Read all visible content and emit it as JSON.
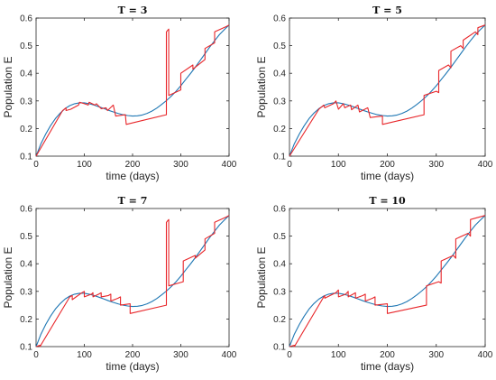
{
  "chart_data": [
    {
      "type": "line",
      "title": "T = 3",
      "xlabel": "time (days)",
      "ylabel": "Population E",
      "xlim": [
        0,
        400
      ],
      "ylim": [
        0.1,
        0.6
      ],
      "xticks": [
        "0",
        "100",
        "200",
        "300",
        "400"
      ],
      "yticks": [
        "0.1",
        "0.2",
        "0.3",
        "0.4",
        "0.5",
        "0.6"
      ],
      "grid": false,
      "colors": {
        "blue": "#1f77b4",
        "red": "#e8262a"
      },
      "series": [
        {
          "x": [
            0,
            10,
            20,
            30,
            40,
            50,
            60,
            70,
            80,
            90,
            100,
            110,
            120,
            130,
            140,
            150,
            160,
            170,
            180,
            190,
            200,
            210,
            220,
            230,
            240,
            250,
            260,
            270,
            280,
            290,
            300,
            310,
            320,
            330,
            340,
            350,
            360,
            370,
            380,
            390,
            400
          ],
          "y": [
            0.1,
            0.145,
            0.18,
            0.21,
            0.236,
            0.256,
            0.272,
            0.283,
            0.29,
            0.293,
            0.293,
            0.29,
            0.285,
            0.279,
            0.273,
            0.266,
            0.26,
            0.255,
            0.25,
            0.247,
            0.245,
            0.246,
            0.249,
            0.255,
            0.263,
            0.274,
            0.287,
            0.301,
            0.317,
            0.335,
            0.355,
            0.377,
            0.399,
            0.422,
            0.446,
            0.471,
            0.495,
            0.518,
            0.54,
            0.558,
            0.575
          ]
        },
        {
          "x": [
            0,
            55,
            62,
            62,
            72,
            88,
            90,
            100,
            108,
            110,
            122,
            125,
            135,
            145,
            148,
            160,
            165,
            185,
            187,
            270,
            270,
            275,
            275,
            300,
            300,
            325,
            325,
            350,
            350,
            370,
            370,
            395,
            400
          ],
          "y": [
            0.1,
            0.265,
            0.275,
            0.265,
            0.27,
            0.285,
            0.295,
            0.29,
            0.285,
            0.295,
            0.285,
            0.29,
            0.272,
            0.275,
            0.265,
            0.285,
            0.245,
            0.25,
            0.215,
            0.25,
            0.55,
            0.56,
            0.32,
            0.34,
            0.4,
            0.43,
            0.415,
            0.45,
            0.49,
            0.51,
            0.55,
            0.57,
            0.575
          ]
        }
      ]
    },
    {
      "type": "line",
      "title": "T = 5",
      "xlabel": "time (days)",
      "ylabel": "Population E",
      "xlim": [
        0,
        400
      ],
      "ylim": [
        0.1,
        0.6
      ],
      "xticks": [
        "0",
        "100",
        "200",
        "300",
        "400"
      ],
      "yticks": [
        "0.1",
        "0.2",
        "0.3",
        "0.4",
        "0.5",
        "0.6"
      ],
      "grid": false,
      "colors": {
        "blue": "#1f77b4",
        "red": "#e8262a"
      },
      "series": [
        {
          "x": [
            0,
            10,
            20,
            30,
            40,
            50,
            60,
            70,
            80,
            90,
            100,
            110,
            120,
            130,
            140,
            150,
            160,
            170,
            180,
            190,
            200,
            210,
            220,
            230,
            240,
            250,
            260,
            270,
            280,
            290,
            300,
            310,
            320,
            330,
            340,
            350,
            360,
            370,
            380,
            390,
            400
          ],
          "y": [
            0.1,
            0.145,
            0.18,
            0.21,
            0.236,
            0.256,
            0.272,
            0.283,
            0.29,
            0.293,
            0.293,
            0.29,
            0.285,
            0.279,
            0.273,
            0.266,
            0.26,
            0.255,
            0.25,
            0.247,
            0.245,
            0.246,
            0.249,
            0.255,
            0.263,
            0.274,
            0.287,
            0.301,
            0.317,
            0.335,
            0.355,
            0.377,
            0.399,
            0.422,
            0.446,
            0.471,
            0.495,
            0.518,
            0.54,
            0.558,
            0.575
          ]
        },
        {
          "x": [
            0,
            60,
            70,
            72,
            90,
            95,
            100,
            110,
            113,
            125,
            127,
            140,
            143,
            160,
            165,
            190,
            190,
            275,
            275,
            300,
            305,
            305,
            325,
            330,
            330,
            350,
            355,
            355,
            380,
            385,
            385,
            400
          ],
          "y": [
            0.1,
            0.27,
            0.285,
            0.275,
            0.29,
            0.3,
            0.27,
            0.29,
            0.275,
            0.285,
            0.268,
            0.285,
            0.26,
            0.275,
            0.24,
            0.245,
            0.215,
            0.25,
            0.32,
            0.335,
            0.33,
            0.41,
            0.43,
            0.42,
            0.48,
            0.5,
            0.49,
            0.52,
            0.55,
            0.54,
            0.565,
            0.575
          ]
        }
      ]
    },
    {
      "type": "line",
      "title": "T = 7",
      "xlabel": "time (days)",
      "ylabel": "Population E",
      "xlim": [
        0,
        400
      ],
      "ylim": [
        0.1,
        0.6
      ],
      "xticks": [
        "0",
        "100",
        "200",
        "300",
        "400"
      ],
      "yticks": [
        "0.1",
        "0.2",
        "0.3",
        "0.4",
        "0.5",
        "0.6"
      ],
      "grid": false,
      "colors": {
        "blue": "#1f77b4",
        "red": "#e8262a"
      },
      "series": [
        {
          "x": [
            0,
            10,
            20,
            30,
            40,
            50,
            60,
            70,
            80,
            90,
            100,
            110,
            120,
            130,
            140,
            150,
            160,
            170,
            180,
            190,
            200,
            210,
            220,
            230,
            240,
            250,
            260,
            270,
            280,
            290,
            300,
            310,
            320,
            330,
            340,
            350,
            360,
            370,
            380,
            390,
            400
          ],
          "y": [
            0.1,
            0.145,
            0.18,
            0.21,
            0.236,
            0.256,
            0.272,
            0.283,
            0.29,
            0.293,
            0.293,
            0.29,
            0.285,
            0.279,
            0.273,
            0.266,
            0.26,
            0.255,
            0.25,
            0.247,
            0.245,
            0.246,
            0.249,
            0.255,
            0.263,
            0.274,
            0.287,
            0.301,
            0.317,
            0.335,
            0.355,
            0.377,
            0.399,
            0.422,
            0.446,
            0.471,
            0.495,
            0.518,
            0.54,
            0.558,
            0.575
          ]
        },
        {
          "x": [
            0,
            8,
            8,
            70,
            75,
            75,
            95,
            100,
            100,
            115,
            118,
            118,
            130,
            135,
            135,
            150,
            155,
            155,
            170,
            175,
            175,
            195,
            195,
            270,
            270,
            275,
            275,
            305,
            305,
            330,
            330,
            350,
            350,
            370,
            370,
            395,
            400
          ],
          "y": [
            0.1,
            0.105,
            0.1,
            0.28,
            0.285,
            0.27,
            0.295,
            0.3,
            0.28,
            0.29,
            0.295,
            0.28,
            0.29,
            0.295,
            0.28,
            0.285,
            0.29,
            0.265,
            0.275,
            0.28,
            0.25,
            0.255,
            0.22,
            0.25,
            0.55,
            0.56,
            0.32,
            0.335,
            0.41,
            0.43,
            0.42,
            0.45,
            0.49,
            0.51,
            0.55,
            0.57,
            0.575
          ]
        }
      ]
    },
    {
      "type": "line",
      "title": "T = 10",
      "xlabel": "time (days)",
      "ylabel": "Population E",
      "xlim": [
        0,
        400
      ],
      "ylim": [
        0.1,
        0.6
      ],
      "xticks": [
        "0",
        "100",
        "200",
        "300",
        "400"
      ],
      "yticks": [
        "0.1",
        "0.2",
        "0.3",
        "0.4",
        "0.5",
        "0.6"
      ],
      "grid": false,
      "colors": {
        "blue": "#1f77b4",
        "red": "#e8262a"
      },
      "series": [
        {
          "x": [
            0,
            10,
            20,
            30,
            40,
            50,
            60,
            70,
            80,
            90,
            100,
            110,
            120,
            130,
            140,
            150,
            160,
            170,
            180,
            190,
            200,
            210,
            220,
            230,
            240,
            250,
            260,
            270,
            280,
            290,
            300,
            310,
            320,
            330,
            340,
            350,
            360,
            370,
            380,
            390,
            400
          ],
          "y": [
            0.1,
            0.145,
            0.18,
            0.21,
            0.236,
            0.256,
            0.272,
            0.283,
            0.29,
            0.293,
            0.293,
            0.29,
            0.285,
            0.279,
            0.273,
            0.266,
            0.26,
            0.255,
            0.25,
            0.247,
            0.245,
            0.246,
            0.249,
            0.255,
            0.263,
            0.274,
            0.287,
            0.301,
            0.317,
            0.335,
            0.355,
            0.377,
            0.399,
            0.422,
            0.446,
            0.471,
            0.495,
            0.518,
            0.54,
            0.558,
            0.575
          ]
        },
        {
          "x": [
            0,
            10,
            10,
            70,
            72,
            72,
            95,
            100,
            100,
            115,
            120,
            120,
            130,
            135,
            135,
            150,
            155,
            155,
            170,
            175,
            175,
            200,
            200,
            280,
            280,
            305,
            310,
            310,
            335,
            340,
            340,
            365,
            370,
            370,
            400
          ],
          "y": [
            0.1,
            0.105,
            0.1,
            0.28,
            0.285,
            0.275,
            0.295,
            0.305,
            0.28,
            0.29,
            0.3,
            0.28,
            0.29,
            0.295,
            0.275,
            0.285,
            0.29,
            0.265,
            0.275,
            0.28,
            0.25,
            0.255,
            0.22,
            0.25,
            0.32,
            0.335,
            0.33,
            0.41,
            0.43,
            0.42,
            0.49,
            0.51,
            0.5,
            0.56,
            0.575
          ]
        }
      ]
    }
  ]
}
